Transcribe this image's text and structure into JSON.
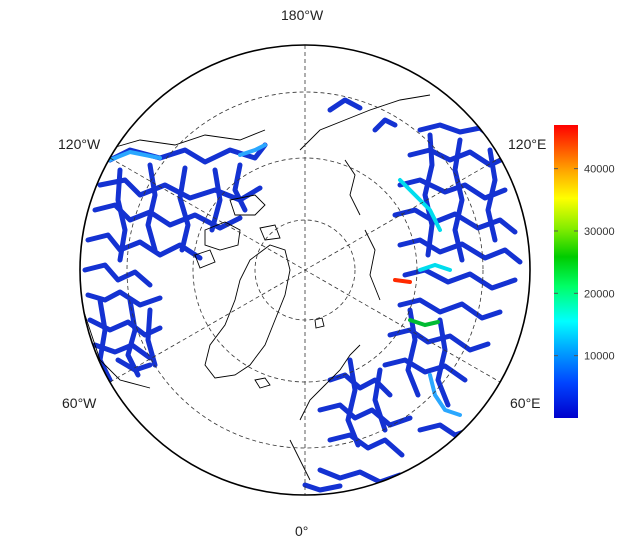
{
  "map": {
    "projection": "north polar stereographic",
    "longitude_labels": {
      "top": "180°W",
      "bottom": "0°",
      "upper_left": "120°W",
      "upper_right": "120°E",
      "lower_left": "60°W",
      "lower_right": "60°E"
    },
    "graticule": {
      "style": "dashed",
      "latitude_circles": 3,
      "meridians": "0°, 60°, 120°, 180°"
    },
    "layers": [
      "coastlines",
      "river network colored by discharge"
    ]
  },
  "colorbar": {
    "ticks": [
      "40000",
      "30000",
      "20000",
      "10000"
    ],
    "tick_values": [
      40000,
      30000,
      20000,
      10000
    ],
    "range": [
      0,
      47000
    ],
    "colormap": [
      "#0000cc",
      "#0044ff",
      "#00aaff",
      "#00ffff",
      "#00ff66",
      "#00cc00",
      "#88ee00",
      "#ffff00",
      "#ffaa00",
      "#ff5500",
      "#ff0000"
    ]
  },
  "colors": {
    "river_low": "#1432d2",
    "river_mid": "#2aa7ff",
    "river_high": "#ff2a00",
    "coastline": "#000000",
    "frame": "#000000"
  }
}
